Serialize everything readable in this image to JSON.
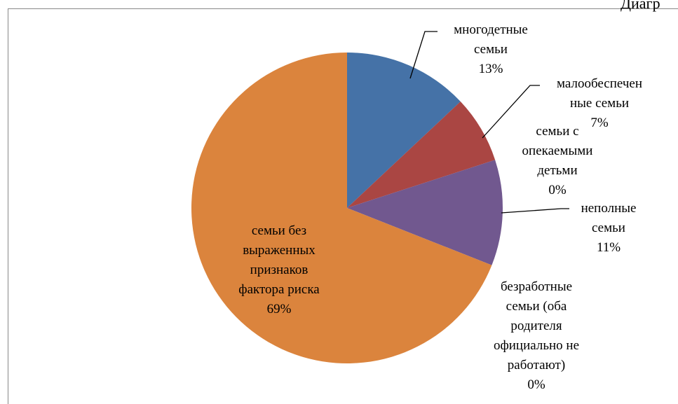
{
  "chart_data": {
    "type": "pie",
    "title": "Диагр",
    "categories": [
      "многодетные\nсемьи",
      "малообеспечен\nные семьи",
      "семьи с\nопекаемыми\nдетьми",
      "неполные\nсемьи",
      "безработные\nсемьи (оба\nродителя\nофициально не\nработают)",
      "семьи без\nвыраженных\nпризнаков\nфактора риска"
    ],
    "values": [
      13,
      7,
      0,
      11,
      0,
      69
    ],
    "value_labels": [
      "13%",
      "7%",
      "0%",
      "11%",
      "0%",
      "69%"
    ],
    "colors": [
      "#4572a7",
      "#aa4643",
      "#89a54e",
      "#71588f",
      "#4198af",
      "#db843d"
    ]
  }
}
